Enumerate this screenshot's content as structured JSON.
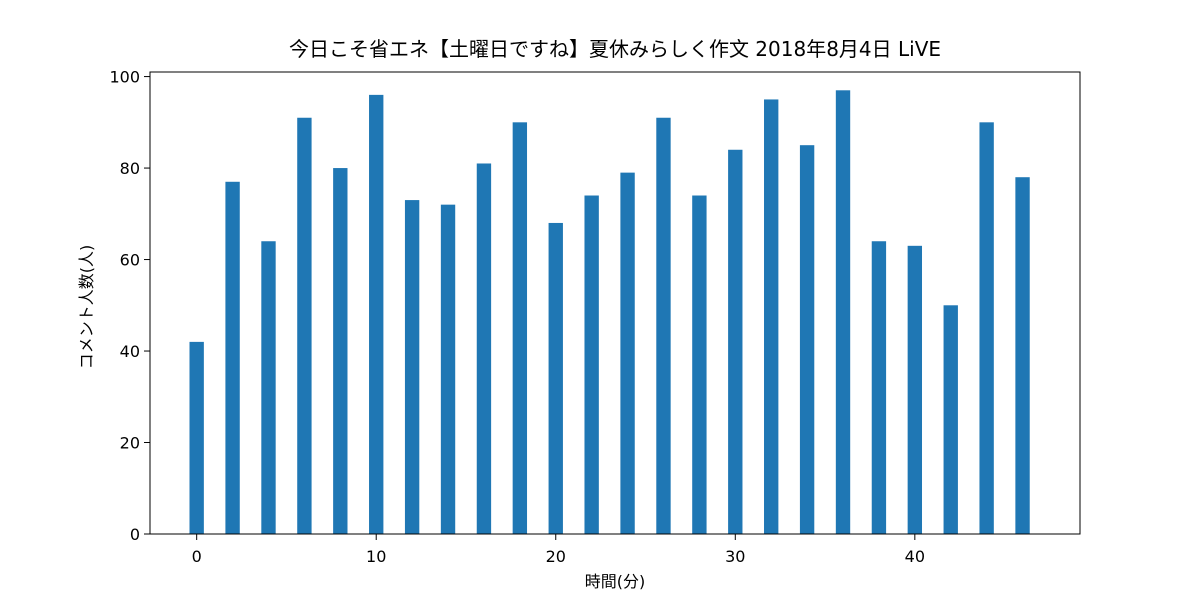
{
  "chart_data": {
    "type": "bar",
    "title": "今日こそ省エネ【土曜日ですね】夏休みらしく作文 2018年8月4日 LiVE",
    "xlabel": "時間(分)",
    "ylabel": "コメント人数(人)",
    "x": [
      0,
      2,
      4,
      6,
      8,
      10,
      12,
      14,
      16,
      18,
      20,
      22,
      24,
      26,
      28,
      30,
      32,
      34,
      36,
      38,
      40,
      42,
      44,
      46
    ],
    "values": [
      42,
      77,
      64,
      91,
      80,
      96,
      73,
      72,
      81,
      90,
      68,
      74,
      79,
      91,
      74,
      84,
      95,
      85,
      97,
      64,
      63,
      50,
      90,
      78
    ],
    "xlim": [
      -2.6,
      49.2
    ],
    "ylim": [
      0,
      101
    ],
    "xticks": [
      0,
      10,
      20,
      30,
      40
    ],
    "yticks": [
      0,
      20,
      40,
      60,
      80,
      100
    ],
    "xtick_labels": [
      "0",
      "10",
      "20",
      "30",
      "40"
    ],
    "ytick_labels": [
      "0",
      "20",
      "40",
      "60",
      "80",
      "100"
    ],
    "bar_width": 0.8,
    "bar_color": "#1f77b4",
    "grid": false,
    "legend": "none"
  }
}
